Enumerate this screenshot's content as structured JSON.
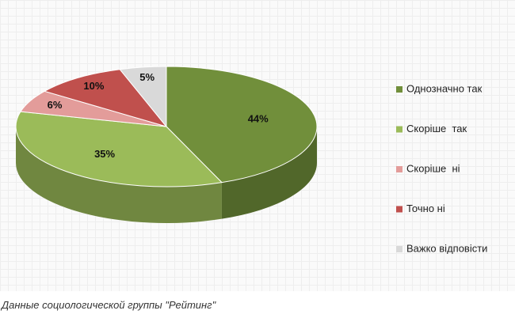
{
  "chart_data": {
    "type": "pie3d",
    "categories": [
      "Однозначно так",
      "Скоріше  так",
      "Скоріше  ні",
      "Точно ні",
      "Важко відповісти"
    ],
    "values": [
      44,
      35,
      6,
      10,
      5
    ],
    "value_labels": [
      "44%",
      "35%",
      "6%",
      "10%",
      "5%"
    ],
    "colors": [
      "#718f3b",
      "#9bbb59",
      "#e39c9a",
      "#c0504d",
      "#d9d9d9"
    ],
    "legend": "right"
  },
  "caption": "Данные социологической группы \"Рейтинг\""
}
